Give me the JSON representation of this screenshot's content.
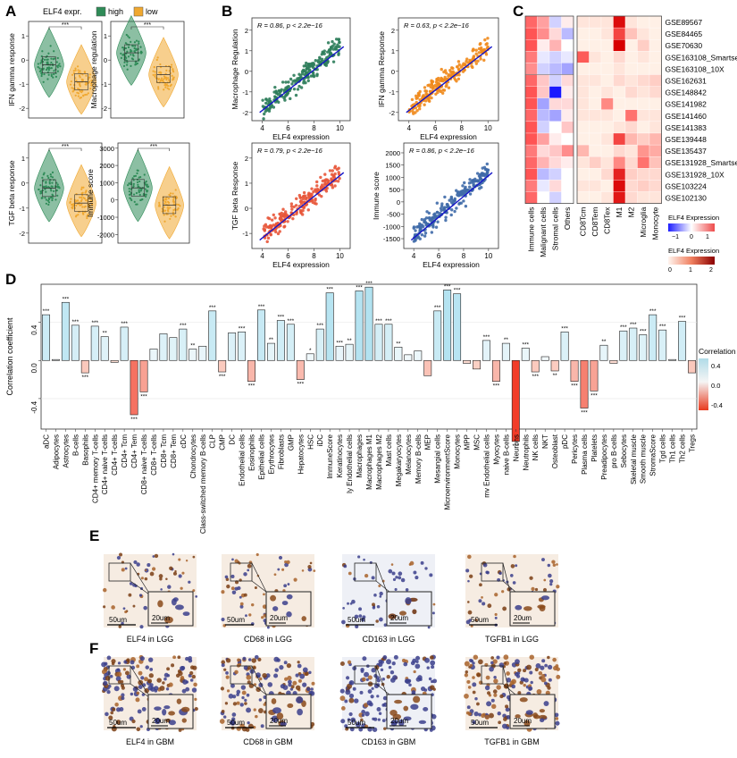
{
  "panel_letters": [
    "A",
    "B",
    "C",
    "D",
    "E",
    "F"
  ],
  "panel_a": {
    "legend_title": "ELF4 expr.",
    "legend_high": "high",
    "legend_low": "low",
    "colors": {
      "high": "#2e8b57",
      "low": "#f0a830"
    },
    "significance": "***",
    "plots": [
      {
        "ylabel": "IFN gamma response",
        "ticks": [
          "1",
          "0",
          "-1",
          "-2"
        ],
        "ymin": -2.4,
        "ymax": 1.6,
        "high_center": -0.2,
        "low_center": -0.9
      },
      {
        "ylabel": "Macrophage regulation",
        "ticks": [
          "1",
          "0",
          "-1",
          "-2"
        ],
        "ymin": -2.4,
        "ymax": 1.6,
        "high_center": 0.3,
        "low_center": -0.6
      },
      {
        "ylabel": "TGF beta response",
        "ticks": [
          "1",
          "0",
          "-1",
          "-2"
        ],
        "ymin": -2.4,
        "ymax": 1.6,
        "high_center": -0.2,
        "low_center": -0.8
      },
      {
        "ylabel": "Immune score",
        "ticks": [
          "3000",
          "2000",
          "1000",
          "0",
          "-1000",
          "-2000"
        ],
        "ymin": -2500,
        "ymax": 3300,
        "high_center": 700,
        "low_center": -300
      }
    ]
  },
  "panel_b": {
    "xlabel": "ELF4 expression",
    "xticks": [
      "4",
      "6",
      "8",
      "10"
    ],
    "plots": [
      {
        "ylabel": "Macrophage Regulation",
        "stat": "R = 0.86, p < 2.2e−16",
        "color": "#2e7d5b",
        "yticks": [
          "2",
          "1",
          "0",
          "-1",
          "-2"
        ],
        "ymin": -2.4,
        "ymax": 2.6
      },
      {
        "ylabel": "IFN gamma Response",
        "stat": "R = 0.63, p < 2.2e−16",
        "color": "#f08a1c",
        "yticks": [
          "2",
          "1",
          "0",
          "-1",
          "-2"
        ],
        "ymin": -2.4,
        "ymax": 2.6
      },
      {
        "ylabel": "TGF beta Response",
        "stat": "R = 0.79, p < 2.2e−16",
        "color": "#e8573a",
        "yticks": [
          "2",
          "1",
          "0",
          "-1"
        ],
        "ymin": -1.6,
        "ymax": 2.6
      },
      {
        "ylabel": "Immune score",
        "stat": "R = 0.86, p < 2.2e−16",
        "color": "#3f6aa8",
        "yticks": [
          "2000",
          "1500",
          "1000",
          "500",
          "0",
          "-500",
          "-1000",
          "-1500"
        ],
        "ymin": -1900,
        "ymax": 2400
      }
    ]
  },
  "panel_c": {
    "datasets": [
      "GSE89567",
      "GSE84465",
      "GSE70630",
      "GSE163108_Smartseq2",
      "GSE163108_10X",
      "GSE162631",
      "GSE148842",
      "GSE141982",
      "GSE141460",
      "GSE141383",
      "GSE139448",
      "GSE135437",
      "GSE131928_Smartseq2",
      "GSE131928_10X",
      "GSE103224",
      "GSE102130"
    ],
    "left_columns": [
      "Immune cells",
      "Malignant cells",
      "Stromal cells",
      "Others"
    ],
    "right_columns": [
      "CD8Tcm",
      "CD8Tem",
      "CD8Tex",
      "M1",
      "M2",
      "Microglia",
      "Monocyte"
    ],
    "legend1_title": "ELF4 Expression",
    "legend1_ticks": [
      "−1",
      "0",
      "1"
    ],
    "legend2_title": "ELF4 Expression",
    "legend2_ticks": [
      "0",
      "1",
      "2"
    ]
  },
  "chart_data": {
    "type": "bar",
    "ylabel": "Correlation coefficient",
    "ylim": [
      -0.72,
      0.8
    ],
    "yticks": [
      "0.4",
      "0.0",
      "-0.4"
    ],
    "legend_title": "Correlation",
    "legend_ticks": [
      "0.4",
      "0.0",
      "-0.4"
    ],
    "categories": [
      "aDC",
      "Adipocytes",
      "Astrocytes",
      "B-cells",
      "Basophils",
      "CD4+ memory T-cells",
      "CD4+ naive T-cells",
      "CD4+ T-cells",
      "CD4+ Tcm",
      "CD4+ Tem",
      "CD8+ naive T-cells",
      "CD8+ T-cells",
      "CD8+ Tcm",
      "CD8+ Tem",
      "cDC",
      "Chondrocytes",
      "Class-switched memory B-cells",
      "CLP",
      "CMP",
      "DC",
      "Endothelial cells",
      "Eosinophils",
      "Epithelial cells",
      "Erythrocytes",
      "Fibroblasts",
      "GMP",
      "Hepatocytes",
      "HSC",
      "iDC",
      "ImmuneScore",
      "Keratinocytes",
      "ly Endothelial cells",
      "Macrophages",
      "Macrophages M1",
      "Macrophages M2",
      "Mast cells",
      "Megakaryocytes",
      "Melanocytes",
      "Memory B-cells",
      "MEP",
      "Mesangial cells",
      "MicroenvironmentScore",
      "Monocytes",
      "MPP",
      "MSC",
      "mv Endothelial cells",
      "Myocytes",
      "naive B-cells",
      "Neurons",
      "Neutrophils",
      "NK cells",
      "NKT",
      "Osteoblast",
      "pDC",
      "Pericytes",
      "Plasma cells",
      "Platelets",
      "Preadipocytes",
      "pro B-cells",
      "Sebocytes",
      "Skeletal muscle",
      "Smooth muscle",
      "StromaScore",
      "Tgd cells",
      "Th1 cells",
      "Th2 cells",
      "Tregs"
    ],
    "values": [
      0.48,
      0.01,
      0.61,
      0.37,
      -0.13,
      0.36,
      0.25,
      -0.02,
      0.35,
      -0.57,
      -0.33,
      0.12,
      0.28,
      0.24,
      0.33,
      0.12,
      0.15,
      0.52,
      -0.12,
      0.29,
      0.3,
      -0.22,
      0.53,
      0.18,
      0.42,
      0.38,
      -0.2,
      0.07,
      0.33,
      0.71,
      0.15,
      0.17,
      0.73,
      0.77,
      0.38,
      0.38,
      0.14,
      0.06,
      0.1,
      -0.16,
      0.52,
      0.74,
      0.7,
      -0.03,
      -0.09,
      0.21,
      -0.22,
      0.18,
      -0.85,
      0.13,
      -0.12,
      0.04,
      -0.11,
      0.3,
      -0.22,
      -0.5,
      -0.32,
      0.16,
      -0.03,
      0.31,
      0.34,
      0.27,
      0.48,
      0.32,
      0.01,
      0.41,
      -0.13
    ],
    "sig": [
      "***",
      "",
      "***",
      "***",
      "***",
      "***",
      "**",
      "",
      "***",
      "***",
      "***",
      "",
      "",
      "",
      "***",
      "**",
      "",
      "***",
      "***",
      "",
      "***",
      "***",
      "***",
      "**",
      "***",
      "***",
      "***",
      "*",
      "***",
      "***",
      "***",
      "**",
      "***",
      "***",
      "***",
      "***",
      "**",
      "",
      "",
      "",
      "***",
      "***",
      "***",
      "",
      "",
      "***",
      "***",
      "**",
      "***",
      "***",
      "***",
      "",
      "**",
      "***",
      "***",
      "***",
      "***",
      "**",
      "",
      "***",
      "***",
      "***",
      "***",
      "***",
      "",
      "***",
      ""
    ]
  },
  "panel_e": {
    "captions": [
      "ELF4 in LGG",
      "CD68  in LGG",
      "CD163  in LGG",
      "TGFB1  in LGG"
    ],
    "scale_large": "50um",
    "scale_small": "20um"
  },
  "panel_f": {
    "captions": [
      "ELF4  in GBM",
      "CD68  in GBM",
      "CD163  in GBM",
      "TGFB1  in GBM"
    ],
    "scale_large": "50um",
    "scale_small": "20um"
  }
}
